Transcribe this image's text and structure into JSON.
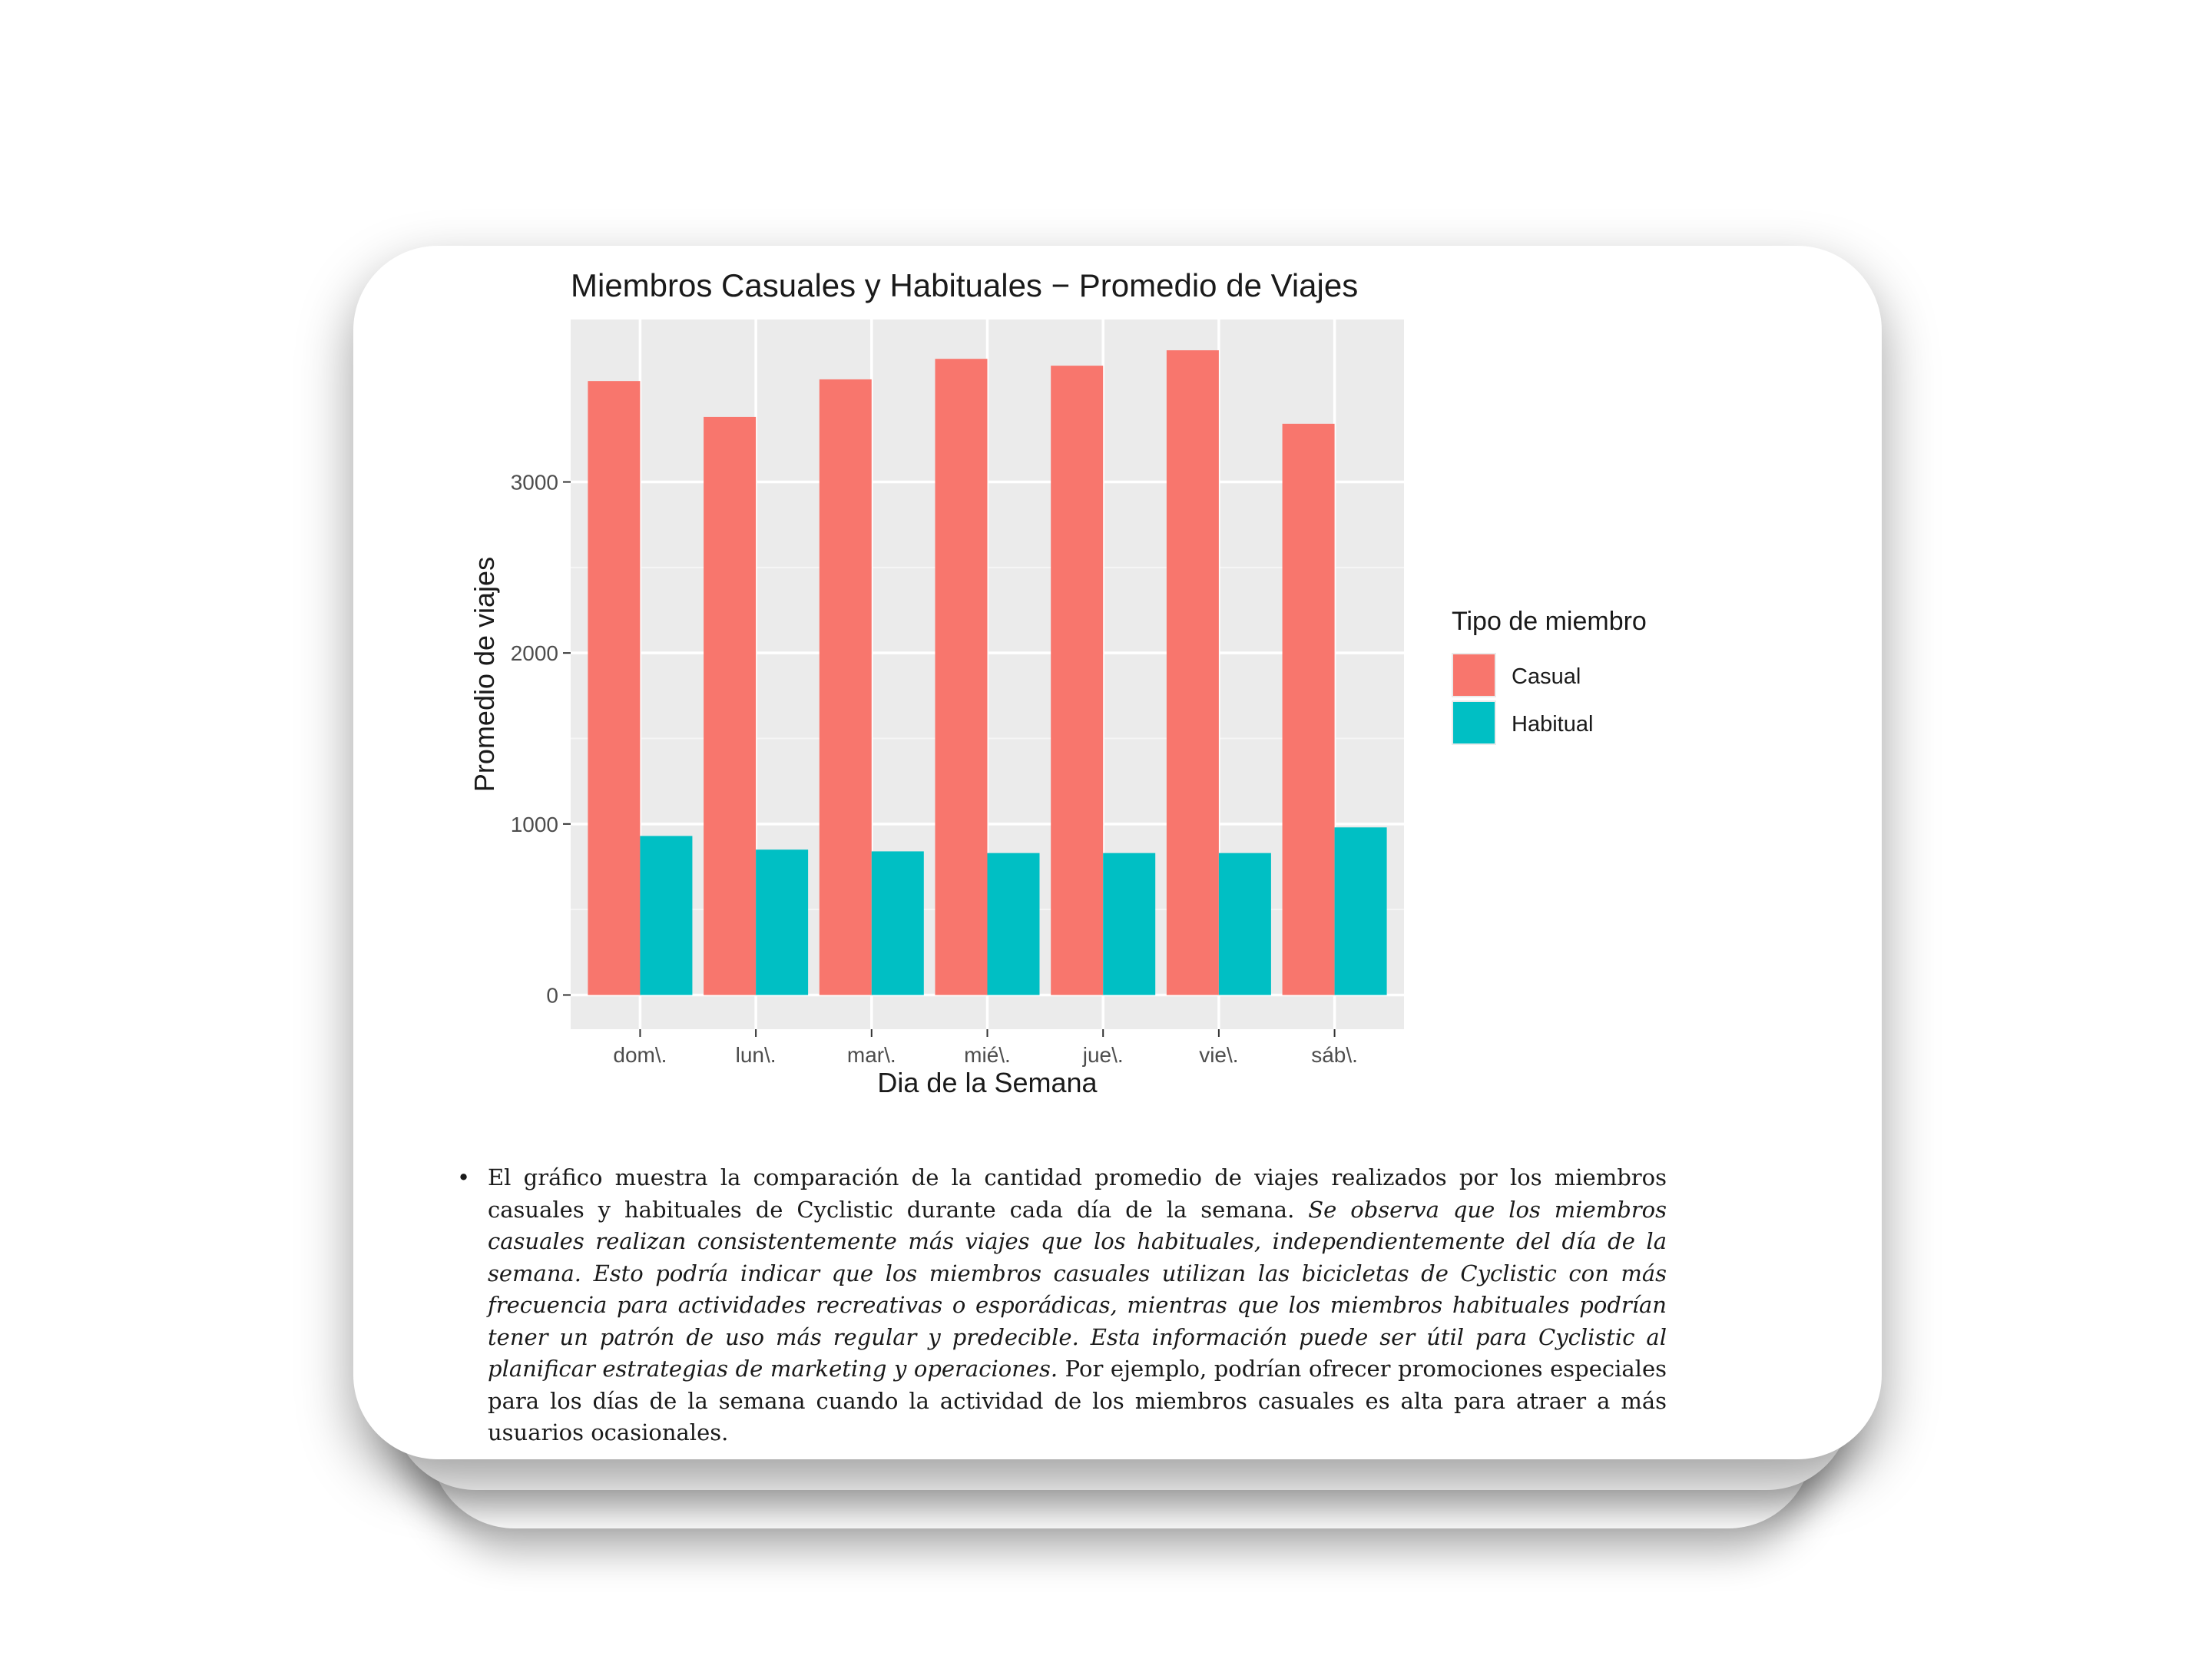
{
  "chart_data": {
    "type": "bar",
    "title": "Miembros Casuales y Habituales − Promedio de Viajes",
    "xlabel": "Dia de la Semana",
    "ylabel": "Promedio de viajes",
    "categories": [
      "dom\\.",
      "lun\\.",
      "mar\\.",
      "mié\\.",
      "jue\\.",
      "vie\\.",
      "sáb\\."
    ],
    "series": [
      {
        "name": "Casual",
        "color": "#F8766D",
        "values": [
          3590,
          3380,
          3600,
          3720,
          3680,
          3770,
          3340
        ]
      },
      {
        "name": "Habitual",
        "color": "#00BFC4",
        "values": [
          930,
          850,
          840,
          830,
          830,
          830,
          980
        ]
      }
    ],
    "yticks": [
      0,
      1000,
      2000,
      3000
    ],
    "ylim": [
      -200,
      3950
    ],
    "grid": true,
    "legend": {
      "title": "Tipo de miembro",
      "position": "right"
    },
    "panel_background": "#EBEBEB"
  },
  "caption": {
    "normal_1": "El gráfico muestra la comparación de la cantidad promedio de viajes realizados por los miembros casuales y habituales de Cyclistic durante cada día de la semana.",
    "italic": "Se observa que los miembros casuales realizan consistentemente más viajes que los habituales, independientemente del día de la semana. Esto podría indicar que los miembros casuales utilizan las bicicletas de Cyclistic con más frecuencia para actividades recreativas o esporádicas, mientras que los miembros habituales podrían tener un patrón de uso más regular y predecible. Esta información puede ser útil para Cyclistic al planificar estrategias de marketing y operaciones.",
    "normal_2": "Por ejemplo, podrían ofrecer promociones especiales para los días de la semana cuando la actividad de los miembros casuales es alta para atraer a más usuarios ocasionales."
  }
}
